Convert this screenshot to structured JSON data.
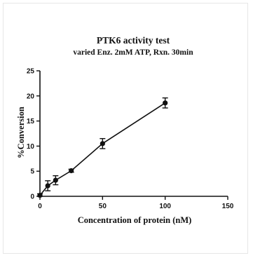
{
  "chart_data": {
    "type": "line",
    "title": "PTK6 activity test",
    "subtitle": "varied Enz. 2mM ATP, Rxn. 30min",
    "xlabel": "Concentration of protein (nM)",
    "ylabel": "%Conversion",
    "xlim": [
      0,
      150
    ],
    "ylim": [
      0,
      25
    ],
    "xticks": [
      0,
      50,
      100,
      150
    ],
    "yticks": [
      0,
      5,
      10,
      15,
      20,
      25
    ],
    "grid": false,
    "series": [
      {
        "x": [
          0,
          6.25,
          12.5,
          25,
          50,
          100
        ],
        "y": [
          0.2,
          2.1,
          3.2,
          5.1,
          10.5,
          18.6
        ],
        "error": [
          0.3,
          1.0,
          0.9,
          0.3,
          1.0,
          1.0
        ],
        "color": "#111111"
      }
    ]
  }
}
